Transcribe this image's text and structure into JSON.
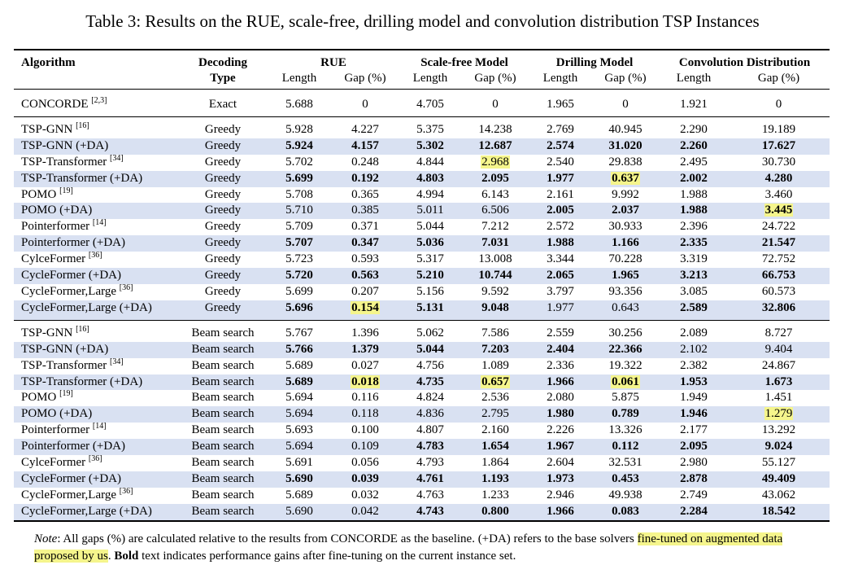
{
  "caption": "Table 3: Results on the RUE, scale-free, drilling model and convolution distribution TSP Instances",
  "header": {
    "algorithm": "Algorithm",
    "decoding1": "Decoding",
    "decoding2": "Type",
    "groups": [
      "RUE",
      "Scale-free Model",
      "Drilling Model",
      "Convolution Distribution"
    ],
    "length": "Length",
    "gap": "Gap (%)"
  },
  "concorde": {
    "name": "CONCORDE",
    "ref": "[2,3]",
    "type": "Exact",
    "vals": [
      "5.688",
      "0",
      "4.705",
      "0",
      "1.965",
      "0",
      "1.921",
      "0"
    ]
  },
  "greedy_rows": [
    {
      "name": "TSP-GNN",
      "ref": "[16]",
      "type": "Greedy",
      "band": false,
      "vals": [
        "5.928",
        "4.227",
        "5.375",
        "14.238",
        "2.769",
        "40.945",
        "2.290",
        "19.189"
      ],
      "bold": [],
      "hl": []
    },
    {
      "name": "TSP-GNN (+DA)",
      "ref": "",
      "type": "Greedy",
      "band": true,
      "vals": [
        "5.924",
        "4.157",
        "5.302",
        "12.687",
        "2.574",
        "31.020",
        "2.260",
        "17.627"
      ],
      "bold": [
        0,
        1,
        2,
        3,
        4,
        5,
        6,
        7
      ],
      "hl": []
    },
    {
      "name": "TSP-Transformer",
      "ref": "[34]",
      "type": "Greedy",
      "band": false,
      "vals": [
        "5.702",
        "0.248",
        "4.844",
        "2.968",
        "2.540",
        "29.838",
        "2.495",
        "30.730"
      ],
      "bold": [],
      "hl": [
        3
      ]
    },
    {
      "name": "TSP-Transformer (+DA)",
      "ref": "",
      "type": "Greedy",
      "band": true,
      "vals": [
        "5.699",
        "0.192",
        "4.803",
        "2.095",
        "1.977",
        "0.637",
        "2.002",
        "4.280"
      ],
      "bold": [
        0,
        1,
        2,
        3,
        4,
        5,
        6,
        7
      ],
      "hl": [
        5
      ]
    },
    {
      "name": "POMO",
      "ref": "[19]",
      "type": "Greedy",
      "band": false,
      "vals": [
        "5.708",
        "0.365",
        "4.994",
        "6.143",
        "2.161",
        "9.992",
        "1.988",
        "3.460"
      ],
      "bold": [],
      "hl": []
    },
    {
      "name": "POMO (+DA)",
      "ref": "",
      "type": "Greedy",
      "band": true,
      "vals": [
        "5.710",
        "0.385",
        "5.011",
        "6.506",
        "2.005",
        "2.037",
        "1.988",
        "3.445"
      ],
      "bold": [
        4,
        5,
        6,
        7
      ],
      "hl": [
        7
      ]
    },
    {
      "name": "Pointerformer",
      "ref": "[14]",
      "type": "Greedy",
      "band": false,
      "vals": [
        "5.709",
        "0.371",
        "5.044",
        "7.212",
        "2.572",
        "30.933",
        "2.396",
        "24.722"
      ],
      "bold": [],
      "hl": []
    },
    {
      "name": "Pointerformer (+DA)",
      "ref": "",
      "type": "Greedy",
      "band": true,
      "vals": [
        "5.707",
        "0.347",
        "5.036",
        "7.031",
        "1.988",
        "1.166",
        "2.335",
        "21.547"
      ],
      "bold": [
        0,
        1,
        2,
        3,
        4,
        5,
        6,
        7
      ],
      "hl": []
    },
    {
      "name": "CylceFormer",
      "ref": "[36]",
      "type": "Greedy",
      "band": false,
      "vals": [
        "5.723",
        "0.593",
        "5.317",
        "13.008",
        "3.344",
        "70.228",
        "3.319",
        "72.752"
      ],
      "bold": [],
      "hl": []
    },
    {
      "name": "CycleFormer (+DA)",
      "ref": "",
      "type": "Greedy",
      "band": true,
      "vals": [
        "5.720",
        "0.563",
        "5.210",
        "10.744",
        "2.065",
        "1.965",
        "3.213",
        "66.753"
      ],
      "bold": [
        0,
        1,
        2,
        3,
        4,
        5,
        6,
        7
      ],
      "hl": []
    },
    {
      "name": "CycleFormer,Large",
      "ref": "[36]",
      "type": "Greedy",
      "band": false,
      "vals": [
        "5.699",
        "0.207",
        "5.156",
        "9.592",
        "3.797",
        "93.356",
        "3.085",
        "60.573"
      ],
      "bold": [],
      "hl": []
    },
    {
      "name": "CycleFormer,Large (+DA)",
      "ref": "",
      "type": "Greedy",
      "band": true,
      "vals": [
        "5.696",
        "0.154",
        "5.131",
        "9.048",
        "1.977",
        "0.643",
        "2.589",
        "32.806"
      ],
      "bold": [
        0,
        1,
        2,
        3,
        6,
        7
      ],
      "hl": [
        1
      ]
    }
  ],
  "beam_rows": [
    {
      "name": "TSP-GNN",
      "ref": "[16]",
      "type": "Beam search",
      "band": false,
      "vals": [
        "5.767",
        "1.396",
        "5.062",
        "7.586",
        "2.559",
        "30.256",
        "2.089",
        "8.727"
      ],
      "bold": [],
      "hl": []
    },
    {
      "name": "TSP-GNN (+DA)",
      "ref": "",
      "type": "Beam search",
      "band": true,
      "vals": [
        "5.766",
        "1.379",
        "5.044",
        "7.203",
        "2.404",
        "22.366",
        "2.102",
        "9.404"
      ],
      "bold": [
        0,
        1,
        2,
        3,
        4,
        5
      ],
      "hl": []
    },
    {
      "name": "TSP-Transformer",
      "ref": "[34]",
      "type": "Beam search",
      "band": false,
      "vals": [
        "5.689",
        "0.027",
        "4.756",
        "1.089",
        "2.336",
        "19.322",
        "2.382",
        "24.867"
      ],
      "bold": [],
      "hl": []
    },
    {
      "name": "TSP-Transformer (+DA)",
      "ref": "",
      "type": "Beam search",
      "band": true,
      "vals": [
        "5.689",
        "0.018",
        "4.735",
        "0.657",
        "1.966",
        "0.061",
        "1.953",
        "1.673"
      ],
      "bold": [
        0,
        1,
        2,
        3,
        4,
        5,
        6,
        7
      ],
      "hl": [
        1,
        3,
        5
      ]
    },
    {
      "name": "POMO",
      "ref": "[19]",
      "type": "Beam search",
      "band": false,
      "vals": [
        "5.694",
        "0.116",
        "4.824",
        "2.536",
        "2.080",
        "5.875",
        "1.949",
        "1.451"
      ],
      "bold": [],
      "hl": []
    },
    {
      "name": "POMO (+DA)",
      "ref": "",
      "type": "Beam search",
      "band": true,
      "vals": [
        "5.694",
        "0.118",
        "4.836",
        "2.795",
        "1.980",
        "0.789",
        "1.946",
        "1.279"
      ],
      "bold": [
        4,
        5,
        6
      ],
      "hl": [
        7
      ]
    },
    {
      "name": "Pointerformer",
      "ref": "[14]",
      "type": "Beam search",
      "band": false,
      "vals": [
        "5.693",
        "0.100",
        "4.807",
        "2.160",
        "2.226",
        "13.326",
        "2.177",
        "13.292"
      ],
      "bold": [],
      "hl": []
    },
    {
      "name": "Pointerformer (+DA)",
      "ref": "",
      "type": "Beam search",
      "band": true,
      "vals": [
        "5.694",
        "0.109",
        "4.783",
        "1.654",
        "1.967",
        "0.112",
        "2.095",
        "9.024"
      ],
      "bold": [
        2,
        3,
        4,
        5,
        6,
        7
      ],
      "hl": []
    },
    {
      "name": "CylceFormer",
      "ref": "[36]",
      "type": "Beam search",
      "band": false,
      "vals": [
        "5.691",
        "0.056",
        "4.793",
        "1.864",
        "2.604",
        "32.531",
        "2.980",
        "55.127"
      ],
      "bold": [],
      "hl": []
    },
    {
      "name": "CycleFormer (+DA)",
      "ref": "",
      "type": "Beam search",
      "band": true,
      "vals": [
        "5.690",
        "0.039",
        "4.761",
        "1.193",
        "1.973",
        "0.453",
        "2.878",
        "49.409"
      ],
      "bold": [
        0,
        1,
        2,
        3,
        4,
        5,
        6,
        7
      ],
      "hl": []
    },
    {
      "name": "CycleFormer,Large",
      "ref": "[36]",
      "type": "Beam search",
      "band": false,
      "vals": [
        "5.689",
        "0.032",
        "4.763",
        "1.233",
        "2.946",
        "49.938",
        "2.749",
        "43.062"
      ],
      "bold": [],
      "hl": []
    },
    {
      "name": "CycleFormer,Large (+DA)",
      "ref": "",
      "type": "Beam search",
      "band": true,
      "vals": [
        "5.690",
        "0.042",
        "4.743",
        "0.800",
        "1.966",
        "0.083",
        "2.284",
        "18.542"
      ],
      "bold": [
        2,
        3,
        4,
        5,
        6,
        7
      ],
      "hl": []
    }
  ],
  "note": {
    "label": "Note",
    "text1": ": All gaps (%) are calculated relative to the results from CONCORDE as the baseline. (+DA) refers to the base solvers ",
    "hl_text": "fine-tuned on augmented data proposed by us",
    "text2": ". ",
    "bold_word": "Bold",
    "text3": " text indicates performance gains after fine-tuning on the current instance set."
  }
}
